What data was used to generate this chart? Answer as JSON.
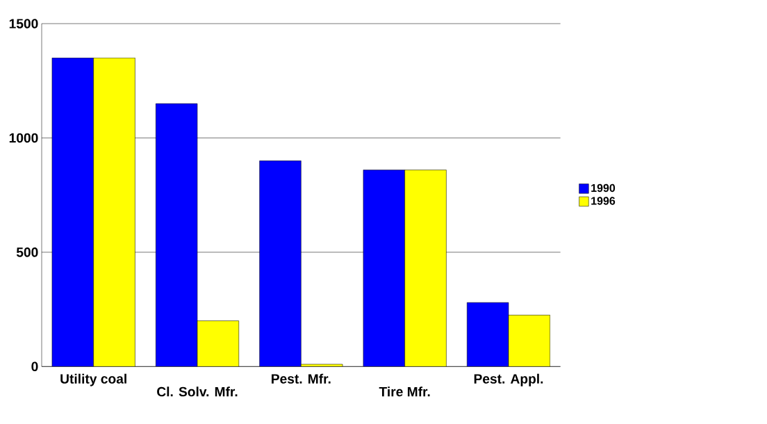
{
  "chart_data": {
    "type": "bar",
    "categories": [
      "Utility coal",
      "Cl.  Solv. Mfr.",
      "Pest. Mfr.",
      "Tire Mfr.",
      "Pest. Appl."
    ],
    "series": [
      {
        "name": "1990",
        "color": "#0000ff",
        "values": [
          1350,
          1150,
          900,
          860,
          280
        ]
      },
      {
        "name": "1996",
        "color": "#ffff00",
        "values": [
          1350,
          200,
          10,
          860,
          225
        ]
      }
    ],
    "ylim": [
      0,
      1500
    ],
    "yticks": [
      0,
      500,
      1000,
      1500
    ],
    "grid": "y",
    "legend": "right"
  }
}
